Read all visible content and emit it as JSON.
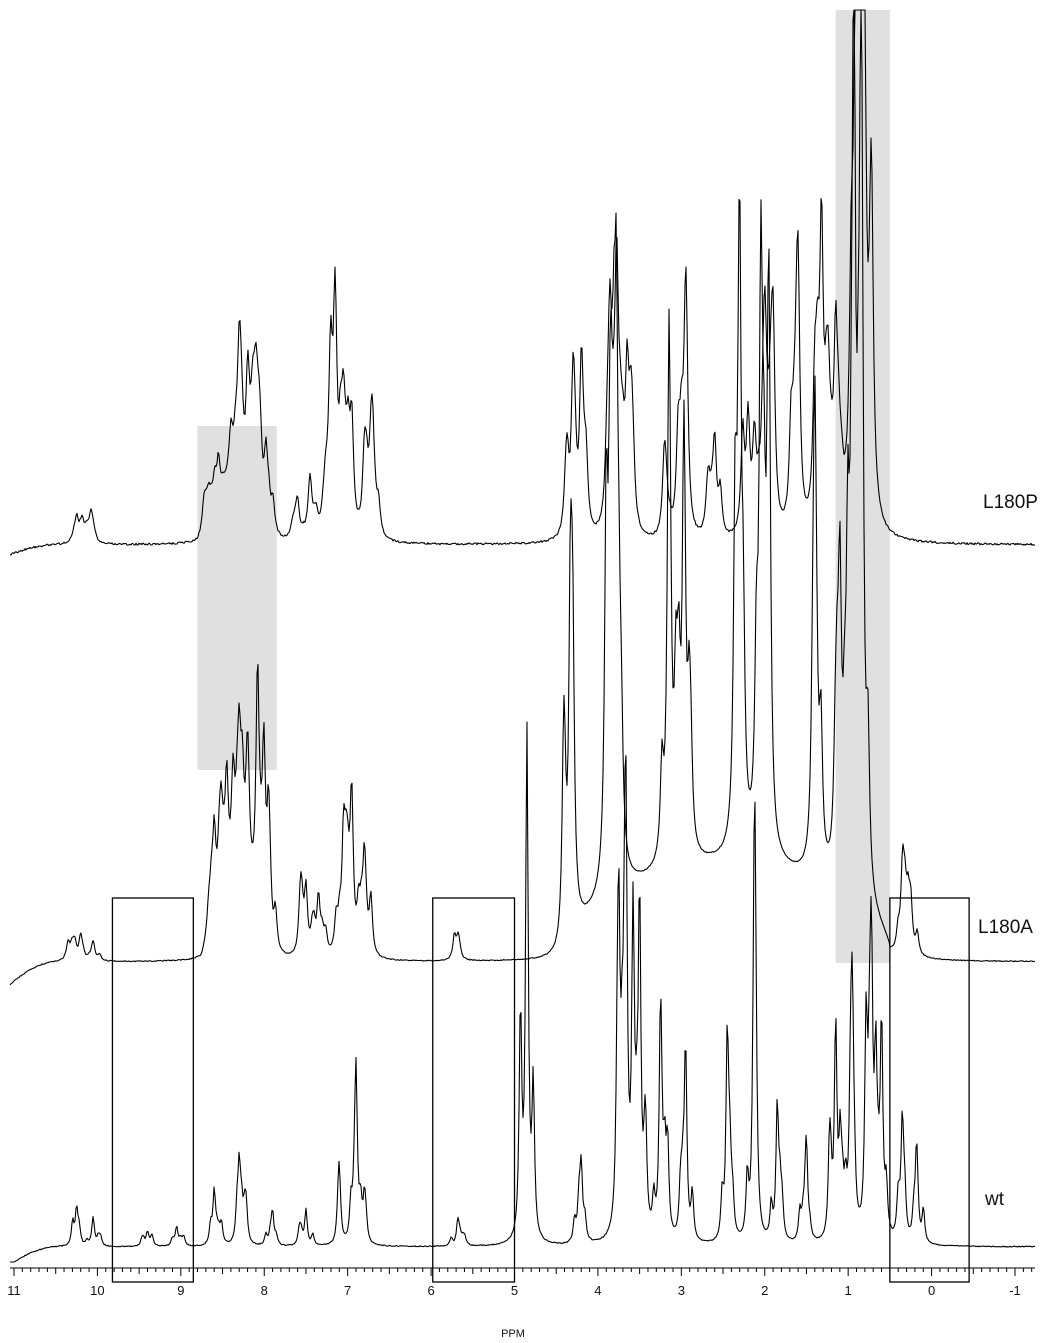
{
  "chart_data": {
    "type": "line",
    "title": "",
    "xlabel": "PPM",
    "ylabel": "",
    "xlim": [
      11.1,
      -1.2
    ],
    "x_reversed": true,
    "xticks": [
      11,
      10,
      9,
      8,
      7,
      6,
      5,
      4,
      3,
      2,
      1,
      0,
      -1
    ],
    "xtick_labels": [
      "11",
      "10",
      "9",
      "8",
      "7",
      "6",
      "5",
      "4",
      "3",
      "2",
      "1",
      "0",
      "-1"
    ],
    "minor_tick_step": 0.1,
    "grid": false,
    "series": [
      {
        "name": "L180P",
        "peaks": [
          {
            "ppm": 10.25,
            "height": 0.16
          },
          {
            "ppm": 10.18,
            "height": 0.14
          },
          {
            "ppm": 10.08,
            "height": 0.2
          },
          {
            "ppm": 8.72,
            "height": 0.3
          },
          {
            "ppm": 8.55,
            "height": 0.45
          },
          {
            "ppm": 8.4,
            "height": 0.55
          },
          {
            "ppm": 8.3,
            "height": 0.85
          },
          {
            "ppm": 8.2,
            "height": 0.95
          },
          {
            "ppm": 8.1,
            "height": 0.9
          },
          {
            "ppm": 7.98,
            "height": 0.65
          },
          {
            "ppm": 7.6,
            "height": 0.3
          },
          {
            "ppm": 7.45,
            "height": 0.45
          },
          {
            "ppm": 7.2,
            "height": 0.9
          },
          {
            "ppm": 7.15,
            "height": 1.35
          },
          {
            "ppm": 7.05,
            "height": 0.65
          },
          {
            "ppm": 6.95,
            "height": 0.75
          },
          {
            "ppm": 6.8,
            "height": 0.7
          },
          {
            "ppm": 6.7,
            "height": 0.8
          },
          {
            "ppm": 4.3,
            "height": 1.25
          },
          {
            "ppm": 4.2,
            "height": 1.1
          },
          {
            "ppm": 3.85,
            "height": 1.35
          },
          {
            "ppm": 3.78,
            "height": 1.5
          },
          {
            "ppm": 3.65,
            "height": 1.4
          },
          {
            "ppm": 3.2,
            "height": 0.6
          },
          {
            "ppm": 2.95,
            "height": 1.8
          },
          {
            "ppm": 2.6,
            "height": 0.9
          },
          {
            "ppm": 2.2,
            "height": 1.1
          },
          {
            "ppm": 2.0,
            "height": 1.4
          },
          {
            "ppm": 1.9,
            "height": 1.2
          },
          {
            "ppm": 1.6,
            "height": 2.2
          },
          {
            "ppm": 1.32,
            "height": 2.8
          },
          {
            "ppm": 1.15,
            "height": 1.7
          },
          {
            "ppm": 0.9,
            "height": 5.0
          },
          {
            "ppm": 0.82,
            "height": 4.0
          },
          {
            "ppm": 0.72,
            "height": 1.6
          }
        ]
      },
      {
        "name": "L180A",
        "peaks": [
          {
            "ppm": 10.35,
            "height": 0.1
          },
          {
            "ppm": 10.2,
            "height": 0.12
          },
          {
            "ppm": 10.05,
            "height": 0.08
          },
          {
            "ppm": 8.6,
            "height": 0.5
          },
          {
            "ppm": 8.45,
            "height": 0.65
          },
          {
            "ppm": 8.3,
            "height": 0.7
          },
          {
            "ppm": 8.2,
            "height": 0.65
          },
          {
            "ppm": 8.08,
            "height": 1.0
          },
          {
            "ppm": 7.95,
            "height": 0.55
          },
          {
            "ppm": 7.5,
            "height": 0.4
          },
          {
            "ppm": 7.35,
            "height": 0.35
          },
          {
            "ppm": 7.05,
            "height": 0.65
          },
          {
            "ppm": 6.95,
            "height": 0.7
          },
          {
            "ppm": 6.8,
            "height": 0.55
          },
          {
            "ppm": 5.72,
            "height": 0.15
          },
          {
            "ppm": 4.33,
            "height": 1.9
          },
          {
            "ppm": 3.9,
            "height": 2.2
          },
          {
            "ppm": 3.78,
            "height": 2.7
          },
          {
            "ppm": 3.15,
            "height": 2.5
          },
          {
            "ppm": 2.97,
            "height": 2.3
          },
          {
            "ppm": 2.3,
            "height": 3.0
          },
          {
            "ppm": 2.05,
            "height": 2.3
          },
          {
            "ppm": 1.95,
            "height": 2.2
          },
          {
            "ppm": 1.4,
            "height": 2.4
          },
          {
            "ppm": 1.1,
            "height": 1.7
          },
          {
            "ppm": 0.93,
            "height": 4.0
          },
          {
            "ppm": 0.85,
            "height": 2.5
          },
          {
            "ppm": 0.35,
            "height": 0.35
          },
          {
            "ppm": 0.25,
            "height": 0.3
          }
        ]
      },
      {
        "name": "wt",
        "peaks": [
          {
            "ppm": 10.25,
            "height": 0.15
          },
          {
            "ppm": 10.05,
            "height": 0.1
          },
          {
            "ppm": 9.4,
            "height": 0.06
          },
          {
            "ppm": 9.05,
            "height": 0.08
          },
          {
            "ppm": 8.6,
            "height": 0.22
          },
          {
            "ppm": 8.3,
            "height": 0.3
          },
          {
            "ppm": 7.9,
            "height": 0.12
          },
          {
            "ppm": 7.5,
            "height": 0.15
          },
          {
            "ppm": 7.1,
            "height": 0.2
          },
          {
            "ppm": 6.9,
            "height": 0.45
          },
          {
            "ppm": 6.8,
            "height": 0.18
          },
          {
            "ppm": 5.68,
            "height": 0.1
          },
          {
            "ppm": 4.85,
            "height": 1.8
          },
          {
            "ppm": 4.2,
            "height": 0.3
          },
          {
            "ppm": 3.75,
            "height": 1.15
          },
          {
            "ppm": 3.58,
            "height": 1.2
          },
          {
            "ppm": 3.5,
            "height": 1.0
          },
          {
            "ppm": 3.25,
            "height": 0.9
          },
          {
            "ppm": 2.95,
            "height": 0.6
          },
          {
            "ppm": 2.45,
            "height": 0.8
          },
          {
            "ppm": 2.12,
            "height": 1.2
          },
          {
            "ppm": 1.85,
            "height": 0.4
          },
          {
            "ppm": 1.5,
            "height": 0.35
          },
          {
            "ppm": 1.15,
            "height": 0.9
          },
          {
            "ppm": 0.95,
            "height": 0.85
          },
          {
            "ppm": 0.72,
            "height": 0.95
          },
          {
            "ppm": 0.6,
            "height": 0.9
          },
          {
            "ppm": 0.35,
            "height": 0.4
          },
          {
            "ppm": 0.18,
            "height": 0.3
          }
        ]
      }
    ],
    "shaded_regions_ppm": [
      [
        8.8,
        7.85
      ],
      [
        1.15,
        0.5
      ]
    ],
    "boxed_regions_ppm": [
      [
        9.82,
        8.85
      ],
      [
        5.98,
        5.0
      ],
      [
        0.5,
        -0.45
      ]
    ]
  }
}
